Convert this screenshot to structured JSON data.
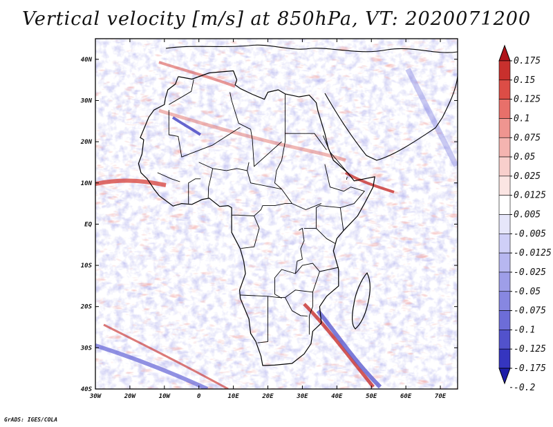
{
  "title": "Vertical velocity [m/s] at 850hPa, VT: 2020071200",
  "credit": "GrADS: IGES/COLA",
  "map": {
    "lon_range": [
      -30,
      75
    ],
    "lat_range": [
      -40,
      45
    ],
    "lon_ticks": [
      {
        "value": -30,
        "label": "30W"
      },
      {
        "value": -20,
        "label": "20W"
      },
      {
        "value": -10,
        "label": "10W"
      },
      {
        "value": 0,
        "label": "0"
      },
      {
        "value": 10,
        "label": "10E"
      },
      {
        "value": 20,
        "label": "20E"
      },
      {
        "value": 30,
        "label": "30E"
      },
      {
        "value": 40,
        "label": "40E"
      },
      {
        "value": 50,
        "label": "50E"
      },
      {
        "value": 60,
        "label": "60E"
      },
      {
        "value": 70,
        "label": "70E"
      }
    ],
    "lat_ticks": [
      {
        "value": 40,
        "label": "40N"
      },
      {
        "value": 30,
        "label": "30N"
      },
      {
        "value": 20,
        "label": "20N"
      },
      {
        "value": 10,
        "label": "10N"
      },
      {
        "value": 0,
        "label": "EQ"
      },
      {
        "value": -10,
        "label": "10S"
      },
      {
        "value": -20,
        "label": "20S"
      },
      {
        "value": -30,
        "label": "30S"
      },
      {
        "value": -40,
        "label": "40S"
      }
    ],
    "africa_outline_lonlat": [
      [
        -6,
        35.8
      ],
      [
        -2,
        35.2
      ],
      [
        3,
        36.7
      ],
      [
        10,
        37.2
      ],
      [
        11,
        35
      ],
      [
        10.5,
        33.8
      ],
      [
        12,
        32.9
      ],
      [
        15.5,
        31.5
      ],
      [
        19,
        30.3
      ],
      [
        20,
        32
      ],
      [
        23,
        32.6
      ],
      [
        25,
        31.6
      ],
      [
        29,
        30.9
      ],
      [
        32,
        31.3
      ],
      [
        34,
        29.5
      ],
      [
        34.5,
        27.5
      ],
      [
        36.5,
        22
      ],
      [
        37.5,
        18.5
      ],
      [
        39,
        15.5
      ],
      [
        43,
        12.6
      ],
      [
        45,
        10.5
      ],
      [
        51,
        11.5
      ],
      [
        50.5,
        9
      ],
      [
        48,
        5
      ],
      [
        46,
        2
      ],
      [
        42,
        -1.5
      ],
      [
        40,
        -3.5
      ],
      [
        39,
        -6.5
      ],
      [
        40.5,
        -11
      ],
      [
        40.5,
        -15
      ],
      [
        37,
        -17.5
      ],
      [
        35,
        -20
      ],
      [
        35.5,
        -24
      ],
      [
        33,
        -26
      ],
      [
        32.5,
        -29
      ],
      [
        30.5,
        -31.5
      ],
      [
        27,
        -33.8
      ],
      [
        22,
        -34.2
      ],
      [
        18.5,
        -34.3
      ],
      [
        18,
        -32
      ],
      [
        16.5,
        -28.5
      ],
      [
        15,
        -26.5
      ],
      [
        14.5,
        -23
      ],
      [
        12,
        -18
      ],
      [
        11.8,
        -16
      ],
      [
        13.5,
        -12
      ],
      [
        13,
        -9
      ],
      [
        12,
        -6
      ],
      [
        9.5,
        -2
      ],
      [
        9.5,
        1
      ],
      [
        9.5,
        4
      ],
      [
        8.5,
        4.5
      ],
      [
        6,
        4.3
      ],
      [
        3,
        6.3
      ],
      [
        1,
        6
      ],
      [
        -2,
        4.8
      ],
      [
        -5,
        5
      ],
      [
        -7.5,
        4.4
      ],
      [
        -11.5,
        6.9
      ],
      [
        -13,
        8.5
      ],
      [
        -15,
        11
      ],
      [
        -16.8,
        12.5
      ],
      [
        -17.5,
        14.7
      ],
      [
        -16.5,
        17
      ],
      [
        -16,
        20.5
      ],
      [
        -17,
        21
      ],
      [
        -14.5,
        26
      ],
      [
        -13,
        27.7
      ],
      [
        -10,
        29
      ],
      [
        -9.7,
        30.6
      ],
      [
        -9,
        32.6
      ],
      [
        -6.8,
        34
      ],
      [
        -6,
        35.8
      ]
    ],
    "borders_lonlat": [
      [
        [
          -8.7,
          27.7
        ],
        [
          -8.7,
          21.7
        ],
        [
          -6,
          21.3
        ],
        [
          -5,
          16.3
        ],
        [
          4,
          19.2
        ],
        [
          12,
          23.5
        ]
      ],
      [
        [
          -1.5,
          35.1
        ],
        [
          -2.2,
          32.2
        ],
        [
          -8.7,
          29
        ]
      ],
      [
        [
          9,
          32
        ],
        [
          9.5,
          30
        ],
        [
          11.5,
          24.5
        ],
        [
          15,
          23
        ]
      ],
      [
        [
          25,
          31.5
        ],
        [
          25,
          22
        ],
        [
          31,
          22
        ]
      ],
      [
        [
          25,
          22
        ],
        [
          25,
          20
        ],
        [
          24,
          15.5
        ],
        [
          22.5,
          13
        ],
        [
          22,
          10
        ],
        [
          24,
          8.5
        ],
        [
          27,
          5
        ],
        [
          31,
          3.5
        ],
        [
          34,
          4.5
        ],
        [
          35.5,
          5
        ]
      ],
      [
        [
          24,
          8.5
        ],
        [
          15,
          10
        ],
        [
          14,
          13
        ],
        [
          14.5,
          15
        ]
      ],
      [
        [
          15,
          23
        ],
        [
          15.5,
          20.5
        ],
        [
          16,
          14
        ],
        [
          24,
          20
        ]
      ],
      [
        [
          31,
          22
        ],
        [
          33.5,
          22
        ],
        [
          37,
          18
        ]
      ],
      [
        [
          0,
          15
        ],
        [
          4,
          13.5
        ],
        [
          8,
          13
        ],
        [
          11,
          13.5
        ],
        [
          14,
          13
        ]
      ],
      [
        [
          4,
          13.5
        ],
        [
          3.5,
          11.5
        ],
        [
          2.8,
          9
        ],
        [
          2.7,
          6.3
        ]
      ],
      [
        [
          0.5,
          11
        ],
        [
          -1,
          11
        ],
        [
          -3,
          10
        ],
        [
          -3,
          5
        ]
      ],
      [
        [
          -5.5,
          10.3
        ],
        [
          -8,
          11
        ],
        [
          -12,
          12.5
        ]
      ],
      [
        [
          9.5,
          2.2
        ],
        [
          11.3,
          2.2
        ],
        [
          16,
          2
        ],
        [
          18,
          3.5
        ],
        [
          18.5,
          4.5
        ],
        [
          22,
          4.5
        ],
        [
          25,
          5
        ],
        [
          27,
          5
        ]
      ],
      [
        [
          16,
          2
        ],
        [
          17.5,
          -1
        ],
        [
          16,
          -5.5
        ],
        [
          12.2,
          -5.9
        ]
      ],
      [
        [
          29,
          -1.5
        ],
        [
          30,
          -1
        ],
        [
          30.5,
          -4
        ],
        [
          29.5,
          -6
        ],
        [
          30,
          -8.5
        ],
        [
          28.5,
          -9
        ],
        [
          28,
          -12
        ],
        [
          24,
          -11
        ],
        [
          22,
          -13
        ],
        [
          22,
          -17
        ],
        [
          24,
          -18
        ]
      ],
      [
        [
          30.5,
          -1
        ],
        [
          34,
          -1
        ],
        [
          37,
          -3.5
        ],
        [
          39.5,
          -4.7
        ]
      ],
      [
        [
          34,
          -1
        ],
        [
          34,
          4
        ],
        [
          35,
          4.5
        ],
        [
          41,
          4
        ],
        [
          41.9,
          -1.5
        ]
      ],
      [
        [
          12,
          -17.2
        ],
        [
          20,
          -17.5
        ],
        [
          23,
          -17.8
        ],
        [
          25,
          -17.8
        ],
        [
          28,
          -16
        ],
        [
          33,
          -16.5
        ]
      ],
      [
        [
          20,
          -17.5
        ],
        [
          20,
          -22
        ],
        [
          20,
          -25
        ],
        [
          20,
          -28.5
        ],
        [
          17,
          -28.8
        ]
      ],
      [
        [
          25,
          -17.8
        ],
        [
          27,
          -21
        ],
        [
          29.5,
          -22.2
        ],
        [
          31.5,
          -22.3
        ]
      ],
      [
        [
          33,
          -16.5
        ],
        [
          33,
          -20
        ],
        [
          32,
          -22.3
        ],
        [
          32,
          -26.8
        ]
      ],
      [
        [
          33,
          -16.5
        ],
        [
          35,
          -11.5
        ],
        [
          40.5,
          -10.5
        ]
      ],
      [
        [
          28,
          -12
        ],
        [
          30,
          -10
        ],
        [
          33,
          -9.5
        ],
        [
          35,
          -11.5
        ]
      ],
      [
        [
          36,
          21.5
        ],
        [
          38,
          17.5
        ],
        [
          43,
          12.6
        ]
      ],
      [
        [
          36.5,
          14.5
        ],
        [
          38,
          9
        ],
        [
          42,
          8
        ],
        [
          44,
          9
        ],
        [
          48,
          8
        ],
        [
          45,
          5
        ],
        [
          41,
          4
        ]
      ],
      [
        [
          43,
          11.5
        ],
        [
          42.8,
          10.8
        ]
      ]
    ]
  },
  "colorbar": {
    "colors": [
      "#b0141a",
      "#c8302d",
      "#dc4d46",
      "#e8706a",
      "#ef9590",
      "#f4b4b0",
      "#f8cfcc",
      "#fbe5e3",
      "#ffffff",
      "#e6e6fa",
      "#cfcff7",
      "#b7b7f0",
      "#9e9ee8",
      "#8787e1",
      "#6d6dd8",
      "#5252cc",
      "#3535bf",
      "#1e1ea8"
    ],
    "labels": [
      "0.175",
      "0.15",
      "0.125",
      "0.1",
      "0.075",
      "0.05",
      "0.025",
      "0.0125",
      "0.005",
      "-0.005",
      "-0.0125",
      "-0.025",
      "-0.05",
      "-0.075",
      "-0.1",
      "-0.125",
      "-0.175",
      "-0.2"
    ]
  }
}
